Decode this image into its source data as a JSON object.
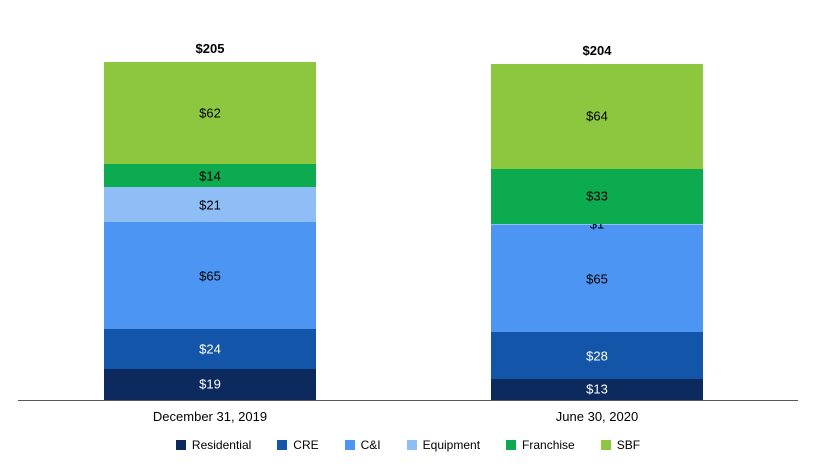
{
  "chart_data": {
    "type": "bar",
    "stacked": true,
    "title": "",
    "categories": [
      "December 31, 2019",
      "June 30, 2020"
    ],
    "series": [
      {
        "name": "Residential",
        "color": "#0d2a5e",
        "label_color": "#ffffff",
        "values": [
          19,
          13
        ]
      },
      {
        "name": "CRE",
        "color": "#1355a9",
        "label_color": "#ffffff",
        "values": [
          24,
          28
        ]
      },
      {
        "name": "C&I",
        "color": "#4d95f2",
        "label_color": "#000000",
        "values": [
          65,
          65
        ]
      },
      {
        "name": "Equipment",
        "color": "#8fbdf5",
        "label_color": "#000000",
        "values": [
          21,
          1
        ]
      },
      {
        "name": "Franchise",
        "color": "#0cab50",
        "label_color": "#000000",
        "values": [
          14,
          33
        ]
      },
      {
        "name": "SBF",
        "color": "#8dc63f",
        "label_color": "#000000",
        "values": [
          62,
          64
        ]
      }
    ],
    "totals": [
      "$205",
      "$204"
    ],
    "data_label_prefix": "$",
    "xlabel": "",
    "ylabel": "",
    "ylim": [
      0,
      205
    ],
    "grid": false,
    "legend_position": "bottom"
  }
}
